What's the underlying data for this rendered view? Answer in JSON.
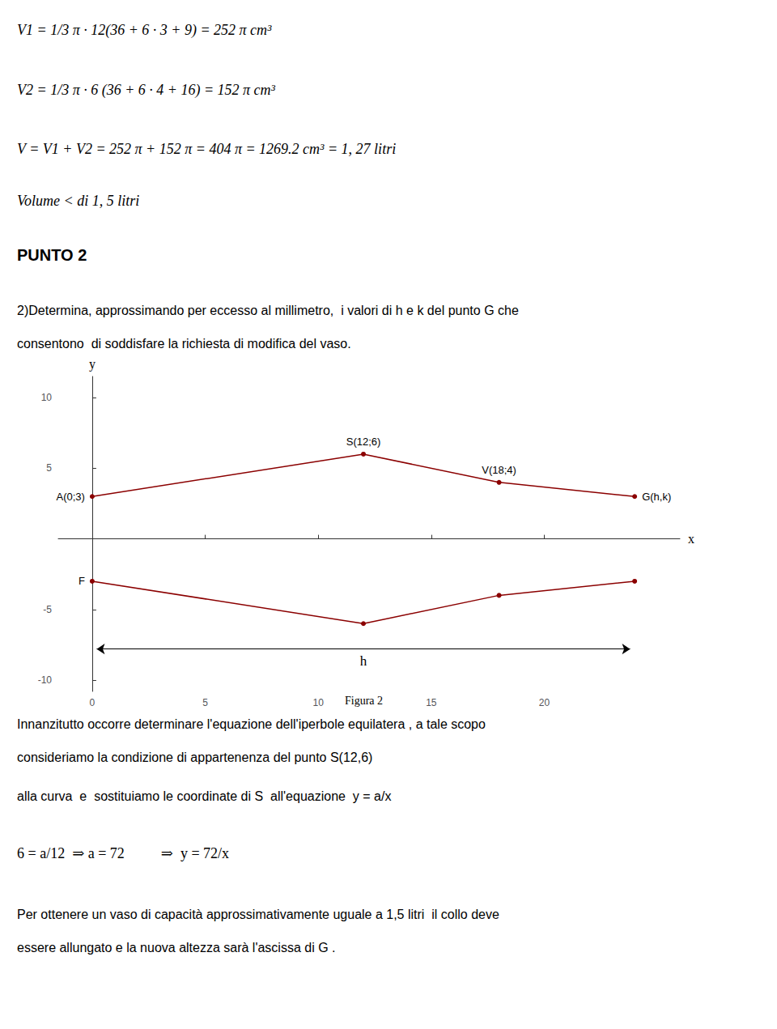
{
  "chart_data": {
    "type": "line",
    "text_above": [
      "V1 = 1/3 π · 12(36 + 6 · 3 + 9) = 252 π cm³",
      "V2 = 1/3 π · 6 (36 + 6 · 4 + 16) = 152 π cm³",
      "V = V1 + V2 = 252 π + 152 π = 404 π = 1269.2 cm³ = 1, 27 litri",
      "Volume < di 1, 5 litri"
    ],
    "heading": "PUNTO 2",
    "description": [
      "2)Determina, approssimando per eccesso al millimetro,  i valori di h e k del punto G che",
      "consentono  di soddisfare la richiesta di modifica del vaso."
    ],
    "xlabel": "x",
    "ylabel": "y",
    "xlim": [
      -1.5,
      26
    ],
    "ylim": [
      -10.8,
      11.5
    ],
    "xticks": [
      0,
      5,
      10,
      15,
      20
    ],
    "yticks": [
      -10,
      -5,
      5,
      10
    ],
    "grid": false,
    "x": [
      0,
      12,
      18,
      24
    ],
    "series": [
      {
        "values": [
          3,
          6,
          4,
          3
        ],
        "color": "#8B0000",
        "marker": "circle",
        "point_labels": [
          "A(0;3)",
          "S(12;6)",
          "V(18;4)",
          "G(h,k)"
        ]
      },
      {
        "values": [
          -3,
          -6,
          -4,
          -3
        ],
        "color": "#8B0000",
        "marker": "circle",
        "point_labels": [
          "F",
          null,
          null,
          null
        ]
      }
    ],
    "arrow": {
      "x": [
        0.2,
        23.8
      ],
      "y": -7.8,
      "label": "h"
    },
    "caption": "Figura 2",
    "text_below": [
      "Innanzitutto occorre determinare l'equazione dell'iperbole equilatera , a tale scopo",
      "consideriamo la condizione di appartenenza del punto S(12,6)",
      "alla curva  e  sostituiamo le coordinate di S  all'equazione  y = a/x",
      "6 = a/12  ⇒ a = 72          ⇒  y = 72/x",
      "Per ottenere un vaso di capacità approssimativamente uguale a 1,5 litri  il collo deve",
      "essere allungato e la nuova altezza sarà l'ascissa di G ."
    ]
  }
}
